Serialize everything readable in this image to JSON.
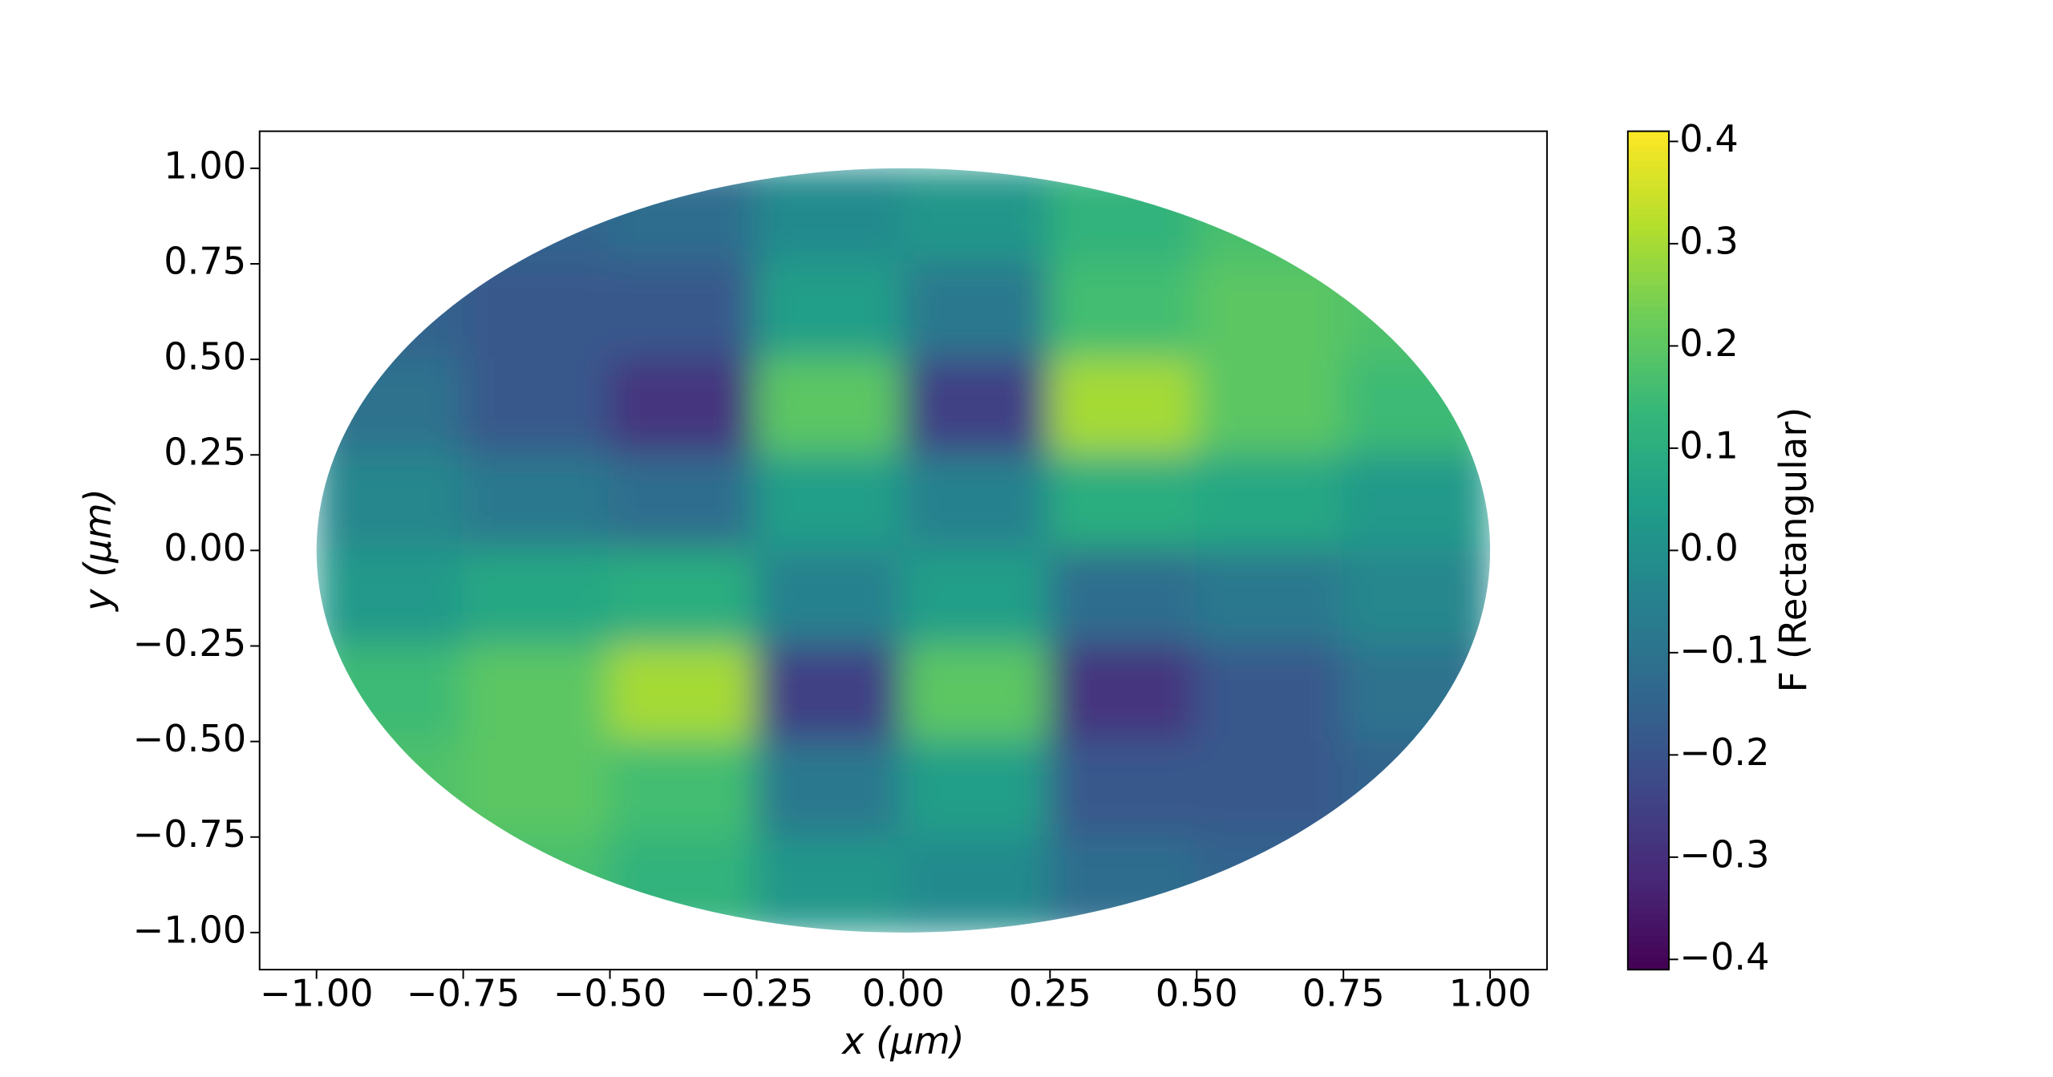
{
  "chart_data": {
    "type": "heatmap",
    "xlabel": "x (μm)",
    "ylabel": "y (μm)",
    "colorbar_label": "F (Rectangular)",
    "colormap": "viridis",
    "xlim": [
      -1.097,
      1.097
    ],
    "ylim": [
      -1.097,
      1.097
    ],
    "clim": [
      -0.41,
      0.41
    ],
    "xticks": [
      {
        "value": -1,
        "label": "−1.00"
      },
      {
        "value": -0.75,
        "label": "−0.75"
      },
      {
        "value": -0.5,
        "label": "−0.50"
      },
      {
        "value": -0.25,
        "label": "−0.25"
      },
      {
        "value": 0,
        "label": "0.00"
      },
      {
        "value": 0.25,
        "label": "0.25"
      },
      {
        "value": 0.5,
        "label": "0.50"
      },
      {
        "value": 0.75,
        "label": "0.75"
      },
      {
        "value": 1,
        "label": "1.00"
      }
    ],
    "yticks": [
      {
        "value": -1,
        "label": "−1.00"
      },
      {
        "value": -0.75,
        "label": "−0.75"
      },
      {
        "value": -0.5,
        "label": "−0.50"
      },
      {
        "value": -0.25,
        "label": "−0.25"
      },
      {
        "value": 0,
        "label": "0.00"
      },
      {
        "value": 0.25,
        "label": "0.25"
      },
      {
        "value": 0.5,
        "label": "0.50"
      },
      {
        "value": 0.75,
        "label": "0.75"
      },
      {
        "value": 1,
        "label": "1.00"
      }
    ],
    "cticks": [
      {
        "value": -0.4,
        "label": "−0.4"
      },
      {
        "value": -0.3,
        "label": "−0.3"
      },
      {
        "value": -0.2,
        "label": "−0.2"
      },
      {
        "value": -0.1,
        "label": "−0.1"
      },
      {
        "value": 0,
        "label": "0.0"
      },
      0.1,
      0.2,
      0.3,
      0.4
    ],
    "x": [
      -0.875,
      -0.625,
      -0.375,
      -0.125,
      0.125,
      0.375,
      0.625,
      0.875
    ],
    "y": [
      0.875,
      0.625,
      0.375,
      0.125,
      -0.125,
      -0.375,
      -0.625,
      -0.875
    ],
    "z": [
      [
        -0.12,
        -0.15,
        -0.12,
        -0.02,
        0.02,
        0.12,
        0.17,
        0.15
      ],
      [
        -0.15,
        -0.18,
        -0.18,
        0.05,
        -0.08,
        0.16,
        0.2,
        0.18
      ],
      [
        -0.1,
        -0.18,
        -0.28,
        0.2,
        -0.25,
        0.3,
        0.2,
        0.15
      ],
      [
        -0.03,
        -0.08,
        -0.12,
        0.05,
        -0.05,
        0.1,
        0.08,
        0.03
      ],
      [
        0.03,
        0.08,
        0.1,
        -0.05,
        0.05,
        -0.12,
        -0.08,
        -0.03
      ],
      [
        0.15,
        0.2,
        0.3,
        -0.25,
        0.2,
        -0.28,
        -0.18,
        -0.1
      ],
      [
        0.18,
        0.2,
        0.16,
        -0.08,
        0.05,
        -0.18,
        -0.18,
        -0.15
      ],
      [
        0.15,
        0.17,
        0.12,
        0.02,
        -0.02,
        -0.12,
        -0.15,
        -0.12
      ]
    ]
  }
}
